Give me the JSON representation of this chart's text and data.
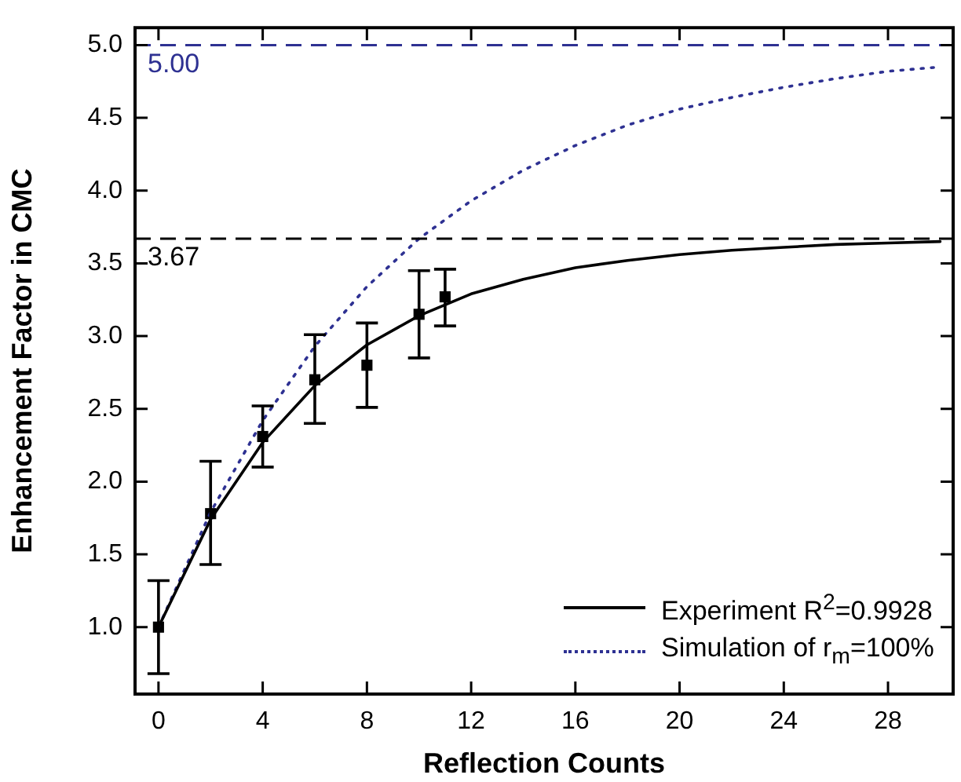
{
  "chart_data": {
    "type": "scatter",
    "xlabel": "Reflection Counts",
    "ylabel": "Enhancement Factor in CMC",
    "xlim": [
      -0.9,
      30.5
    ],
    "xticks": [
      0,
      4,
      8,
      12,
      16,
      20,
      24,
      28
    ],
    "ylim": [
      0.54,
      5.12
    ],
    "yticks": [
      {
        "value": 1,
        "label": "1.0"
      },
      {
        "value": 1.5,
        "label": "1.5"
      },
      {
        "value": 2,
        "label": "2.0"
      },
      {
        "value": 2.5,
        "label": "2.5"
      },
      {
        "value": 3,
        "label": "3.0"
      },
      {
        "value": 3.5,
        "label": "3.5"
      },
      {
        "value": 4,
        "label": "4.0"
      },
      {
        "value": 4.5,
        "label": "4.5"
      },
      {
        "value": 5,
        "label": "5.0"
      }
    ],
    "grid": false,
    "legend": "bottom right",
    "series": [
      {
        "type": "line",
        "name": "Experiment R$^{2}$=0.9928",
        "color": "#000000",
        "marker": "none",
        "line_style": "solid",
        "x": [
          0,
          2,
          4,
          6,
          8,
          10,
          12,
          14,
          16,
          18,
          20,
          22,
          24,
          26,
          28,
          30
        ],
        "values": [
          1.0,
          1.74,
          2.27,
          2.66,
          2.94,
          3.14,
          3.29,
          3.39,
          3.47,
          3.52,
          3.56,
          3.59,
          3.61,
          3.63,
          3.64,
          3.65
        ]
      },
      {
        "type": "line",
        "name": "Simulation of r$_{m}$=100%",
        "color": "#2e3192",
        "marker": "none",
        "line_style": "dotted",
        "x": [
          0,
          2,
          4,
          6,
          8,
          10,
          12,
          14,
          16,
          18,
          20,
          22,
          24,
          26,
          28,
          30
        ],
        "values": [
          1.0,
          1.79,
          2.42,
          2.93,
          3.34,
          3.67,
          3.93,
          4.14,
          4.31,
          4.45,
          4.56,
          4.64,
          4.71,
          4.77,
          4.82,
          4.85
        ]
      },
      {
        "color": "#000000",
        "marker": "square",
        "x": [
          0,
          2,
          4,
          6,
          8,
          10,
          11
        ],
        "values": [
          1.0,
          1.78,
          2.31,
          2.7,
          2.8,
          3.15,
          3.27
        ],
        "errors": [
          [
            0.68,
            1.32
          ],
          [
            1.43,
            2.14
          ],
          [
            2.1,
            2.52
          ],
          [
            2.4,
            3.01
          ],
          [
            2.51,
            3.09
          ],
          [
            2.85,
            3.45
          ],
          [
            3.07,
            3.46
          ]
        ]
      }
    ],
    "ref_lines": [
      {
        "axis": "y",
        "value": 5.0,
        "label": "5.00",
        "color": "#2e3192",
        "line_style": "dashed"
      },
      {
        "axis": "y",
        "value": 3.67,
        "label": "3.67",
        "color": "#000000",
        "line_style": "dashed"
      }
    ]
  }
}
